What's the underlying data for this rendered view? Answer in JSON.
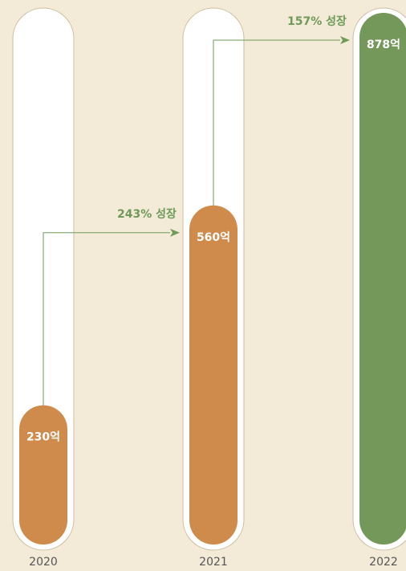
{
  "chart_data": {
    "type": "bar",
    "categories": [
      "2020",
      "2021",
      "2022"
    ],
    "values": [
      230,
      560,
      878
    ],
    "value_labels": [
      "230억",
      "560억",
      "878억"
    ],
    "colors": [
      "#cf8b4b",
      "#cf8b4b",
      "#74975a"
    ],
    "annotations": [
      "243% 성장",
      "157% 성장"
    ],
    "annotation_color": "#6f9a58",
    "background": "#f3ead8"
  }
}
